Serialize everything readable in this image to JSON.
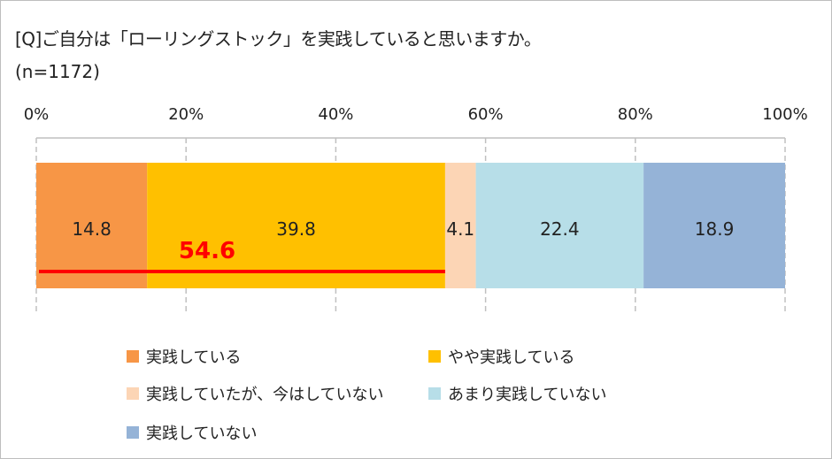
{
  "title": "[Q]ご自分は「ローリングストック」を実践していると思いますか。",
  "sample": "(n=1172)",
  "chart_data": {
    "type": "bar",
    "orientation": "horizontal",
    "stacked": true,
    "percent_stacked": true,
    "title": "[Q]ご自分は「ローリングストック」を実践していると思いますか。",
    "xlim": [
      0,
      100
    ],
    "x_ticks": [
      "0%",
      "20%",
      "40%",
      "60%",
      "80%",
      "100%"
    ],
    "grid": true,
    "legend_position": "bottom",
    "series": [
      {
        "name": "実践している",
        "value": 14.8,
        "label": "14.8",
        "color": "#F79646"
      },
      {
        "name": "やや実践している",
        "value": 39.8,
        "label": "39.8",
        "color": "#FFC000"
      },
      {
        "name": "実践していたが、今はしていない",
        "value": 4.1,
        "label": "4.1",
        "color": "#FCD5B5"
      },
      {
        "name": "あまり実践していない",
        "value": 22.4,
        "label": "22.4",
        "color": "#B7DEE8"
      },
      {
        "name": "実践していない",
        "value": 18.9,
        "label": "18.9",
        "color": "#95B3D7"
      }
    ],
    "annotation": {
      "text": "54.6",
      "from": 0,
      "to": 54.6,
      "color": "#FF0000"
    }
  }
}
